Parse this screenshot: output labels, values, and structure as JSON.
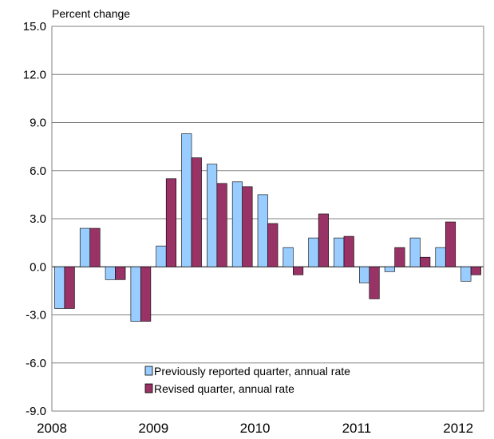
{
  "chart_data": {
    "type": "bar",
    "title": "",
    "ylabel": "Percent change",
    "xlabel": "",
    "ylim": [
      -9.0,
      15.0
    ],
    "yticks": [
      "15.0",
      "12.0",
      "9.0",
      "6.0",
      "3.0",
      "0.0",
      "-3.0",
      "-6.0",
      "-9.0"
    ],
    "ytick_values": [
      15,
      12,
      9,
      6,
      3,
      0,
      -3,
      -6,
      -9
    ],
    "x_tick_labels": [
      "2008",
      "2009",
      "2010",
      "2011",
      "2012"
    ],
    "grid": true,
    "legend_position": "bottom-center",
    "series": [
      {
        "name": "Previously reported quarter, annual rate",
        "color": "#99CCFF",
        "values": [
          -2.6,
          2.4,
          -0.8,
          -3.4,
          1.3,
          8.3,
          6.4,
          5.3,
          4.5,
          1.2,
          1.8,
          1.8,
          -1.0,
          -0.3,
          1.8,
          1.2,
          -0.9
        ]
      },
      {
        "name": "Revised quarter, annual rate",
        "color": "#993366",
        "values": [
          -2.6,
          2.4,
          -0.8,
          -3.4,
          5.5,
          6.8,
          5.2,
          5.0,
          2.7,
          -0.5,
          3.3,
          1.9,
          -2.0,
          1.2,
          0.6,
          2.8,
          -0.5
        ]
      }
    ]
  }
}
